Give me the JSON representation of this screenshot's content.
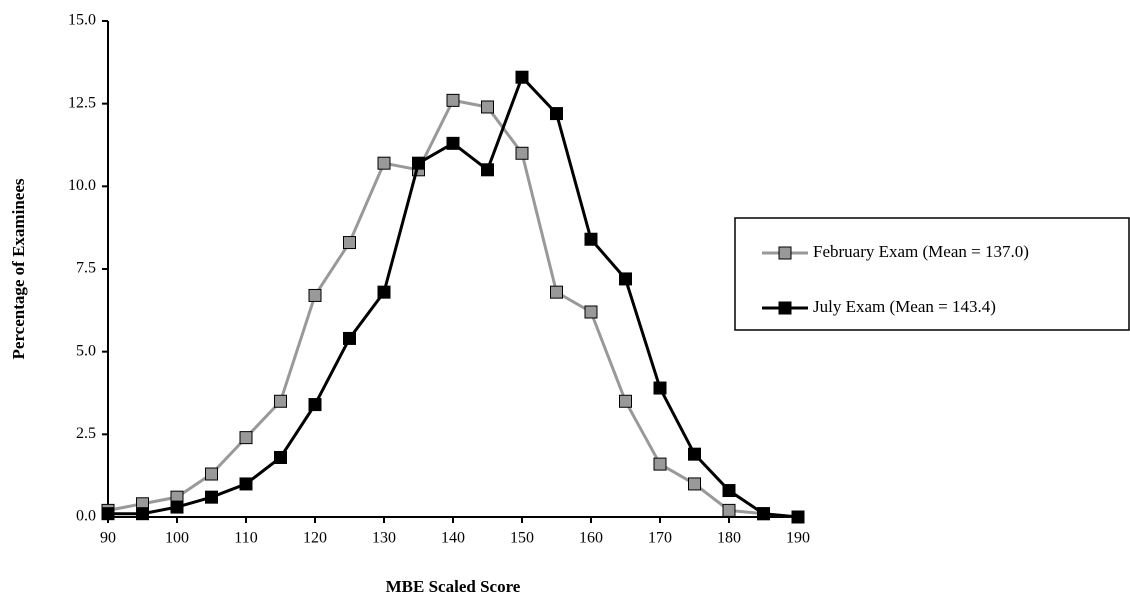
{
  "chart_data": {
    "type": "line",
    "x_label": "MBE Scaled Score",
    "y_label": "Percentage of Examinees",
    "x": [
      90,
      95,
      100,
      105,
      110,
      115,
      120,
      125,
      130,
      135,
      140,
      145,
      150,
      155,
      160,
      165,
      170,
      175,
      180,
      185,
      190
    ],
    "series": [
      {
        "name": "February Exam (Mean = 137.0)",
        "color": "#999999",
        "values": [
          0.2,
          0.4,
          0.6,
          1.3,
          2.4,
          3.5,
          6.7,
          8.3,
          10.7,
          10.5,
          12.6,
          12.4,
          11.0,
          6.8,
          6.2,
          3.5,
          1.6,
          1.0,
          0.2,
          0.1,
          0.0
        ]
      },
      {
        "name": "July Exam (Mean = 143.4)",
        "color": "#000000",
        "values": [
          0.1,
          0.1,
          0.3,
          0.6,
          1.0,
          1.8,
          3.4,
          5.4,
          6.8,
          10.7,
          11.3,
          10.5,
          13.3,
          12.2,
          8.4,
          7.2,
          3.9,
          1.9,
          0.8,
          0.1,
          0.0
        ]
      }
    ],
    "xlim": [
      90,
      190
    ],
    "xticks": [
      90,
      100,
      110,
      120,
      130,
      140,
      150,
      160,
      170,
      180,
      190
    ],
    "ylim": [
      0,
      15
    ],
    "yticks": [
      {
        "value": 0,
        "label": "0.0"
      },
      2.5,
      {
        "value": 5,
        "label": "5.0"
      },
      7.5,
      {
        "value": 10,
        "label": "10.0"
      },
      12.5,
      {
        "value": 15,
        "label": "15.0"
      }
    ],
    "grid": false,
    "legend": "right"
  }
}
